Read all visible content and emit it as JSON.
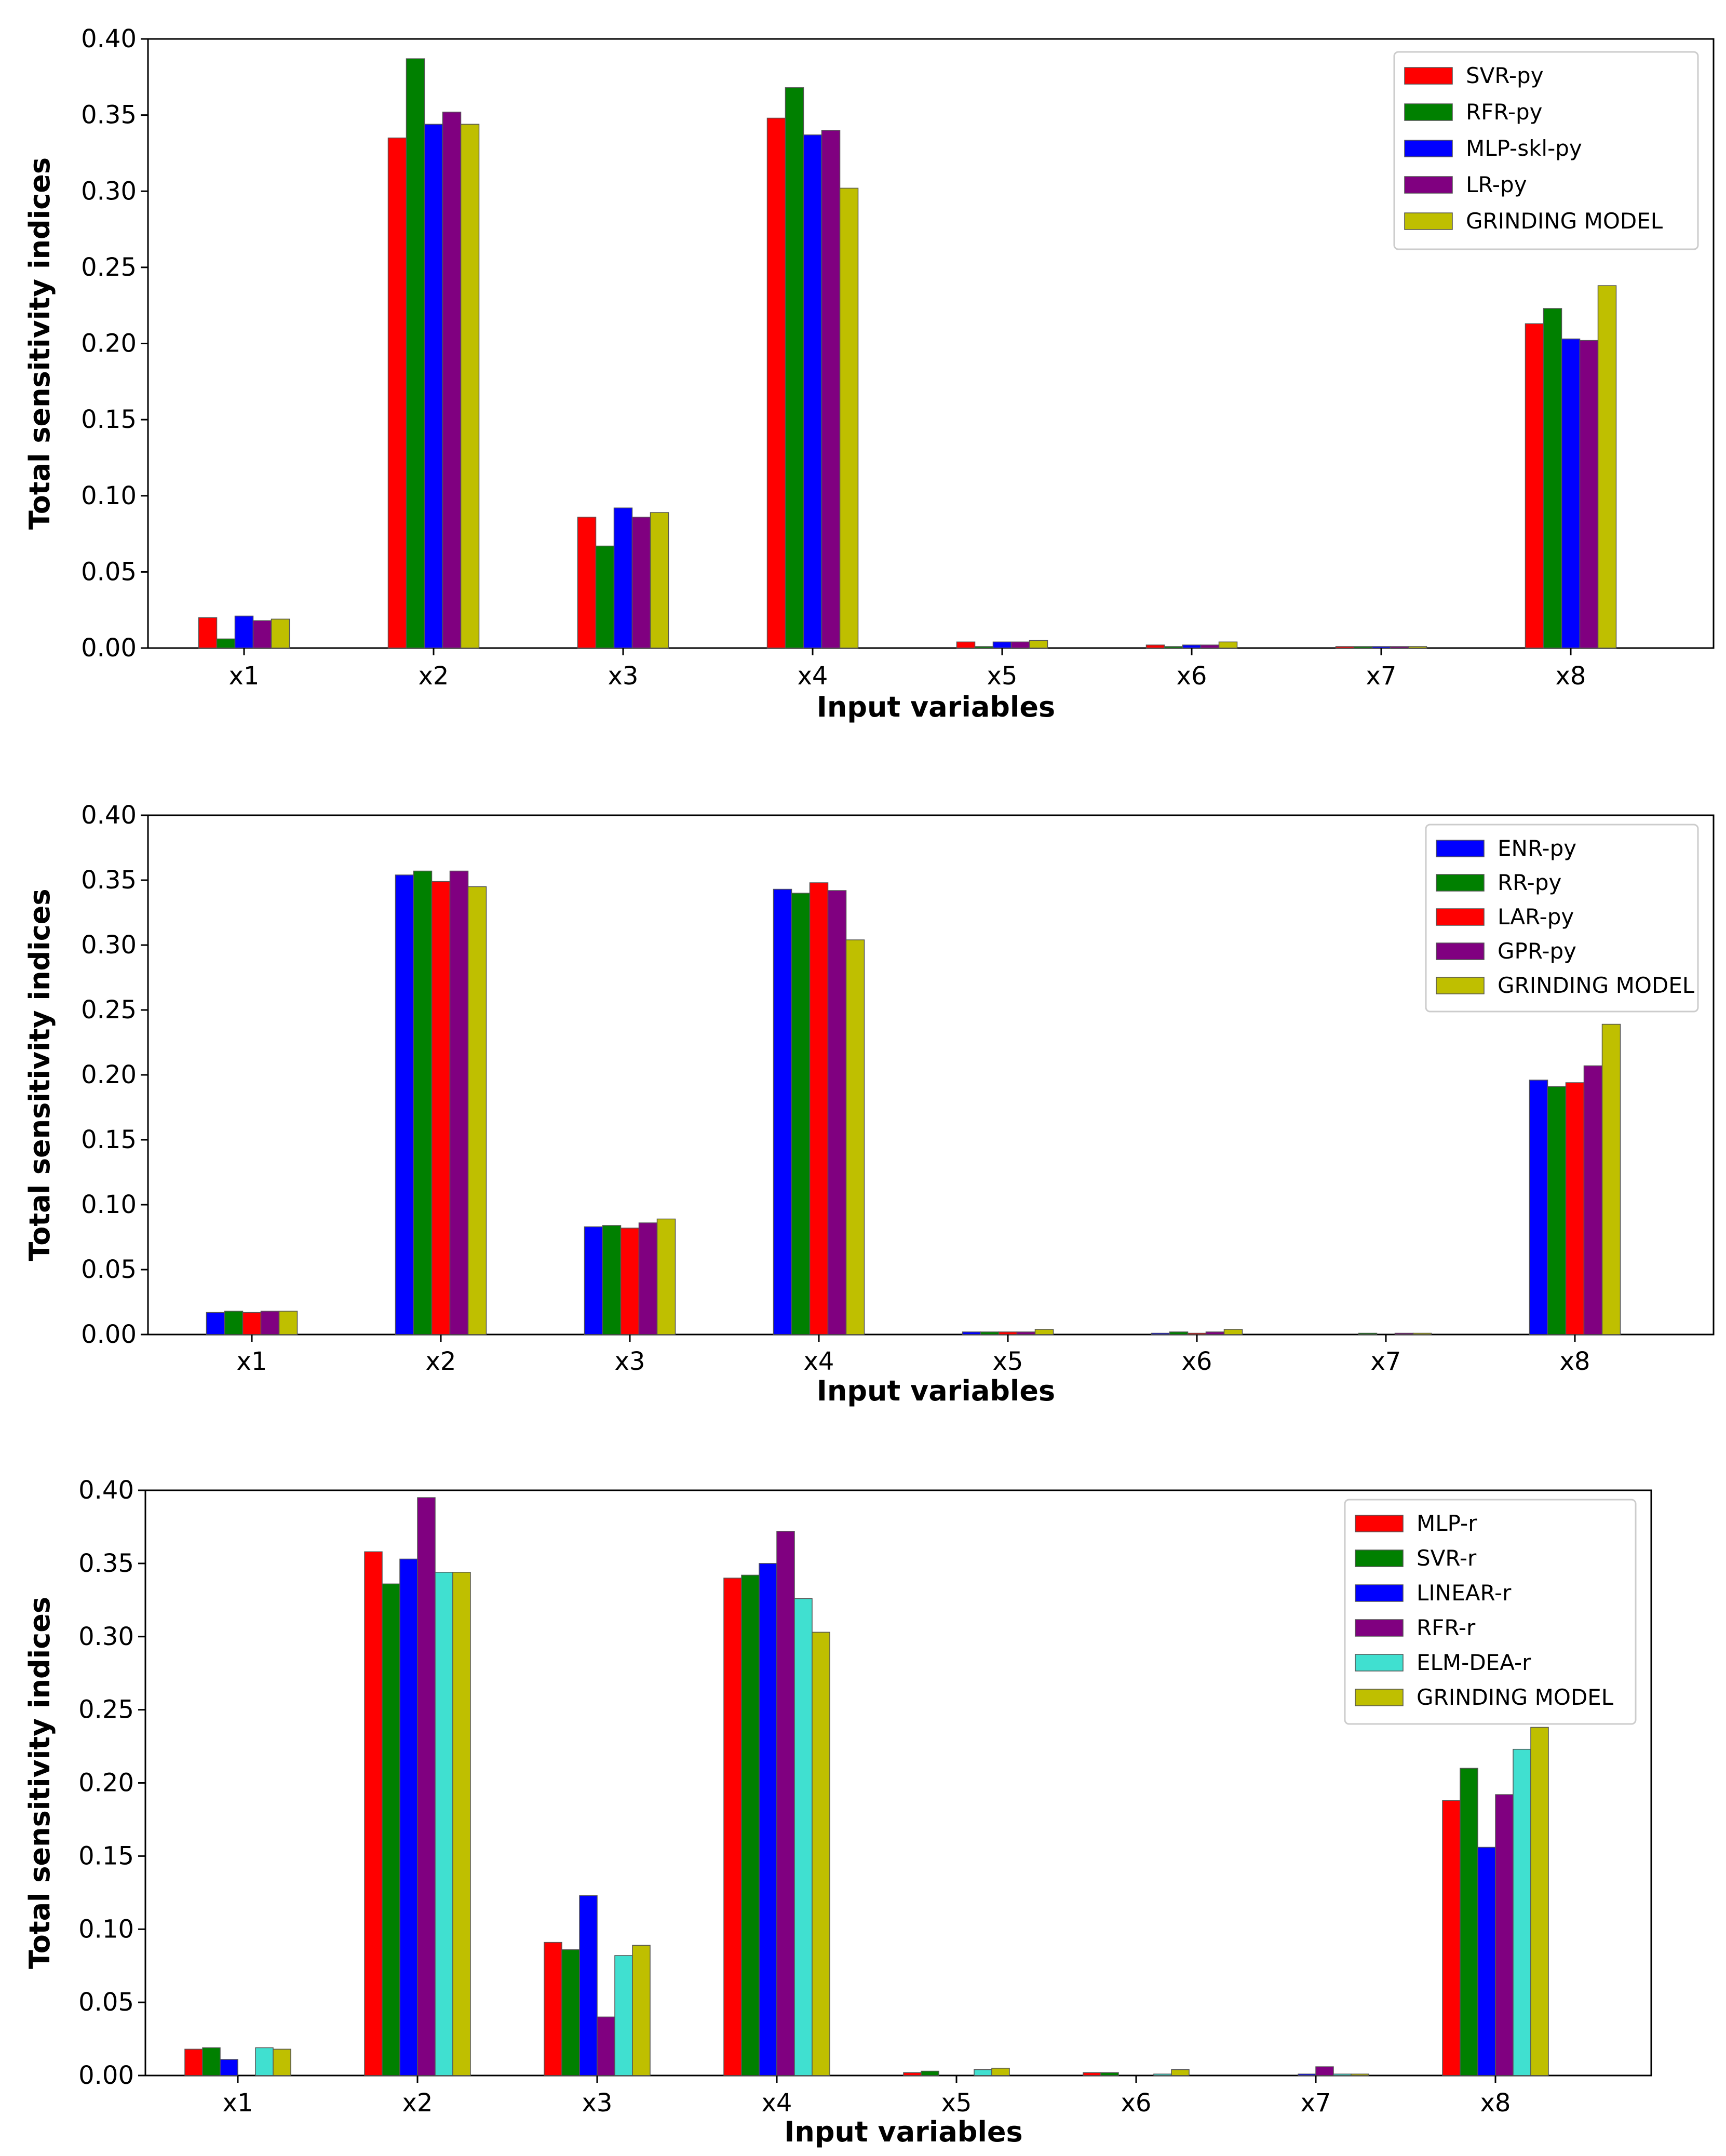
{
  "chart_data": [
    {
      "type": "bar",
      "categories": [
        "x1",
        "x2",
        "x3",
        "x4",
        "x5",
        "x6",
        "x7",
        "x8"
      ],
      "xlabel": "Input variables",
      "ylabel": "Total sensitivity indices",
      "ylim": [
        0,
        0.4
      ],
      "yticks": [
        "0.00",
        "0.05",
        "0.10",
        "0.15",
        "0.20",
        "0.25",
        "0.30",
        "0.35",
        "0.40"
      ],
      "legend_position": "top-right",
      "grid": false,
      "series": [
        {
          "name": "SVR-py",
          "color": "#ff0000",
          "values": [
            0.02,
            0.335,
            0.086,
            0.348,
            0.004,
            0.002,
            0.001,
            0.213
          ]
        },
        {
          "name": "RFR-py",
          "color": "#008000",
          "values": [
            0.006,
            0.387,
            0.067,
            0.368,
            0.001,
            0.001,
            0.001,
            0.223
          ]
        },
        {
          "name": "MLP-skl-py",
          "color": "#0000ff",
          "values": [
            0.021,
            0.344,
            0.092,
            0.337,
            0.004,
            0.002,
            0.001,
            0.203
          ]
        },
        {
          "name": "LR-py",
          "color": "#800080",
          "values": [
            0.018,
            0.352,
            0.086,
            0.34,
            0.004,
            0.002,
            0.001,
            0.202
          ]
        },
        {
          "name": "GRINDING MODEL",
          "color": "#bfbf00",
          "values": [
            0.019,
            0.344,
            0.089,
            0.302,
            0.005,
            0.004,
            0.001,
            0.238
          ]
        }
      ]
    },
    {
      "type": "bar",
      "categories": [
        "x1",
        "x2",
        "x3",
        "x4",
        "x5",
        "x6",
        "x7",
        "x8"
      ],
      "xlabel": "Input variables",
      "ylabel": "Total sensitivity indices",
      "ylim": [
        0,
        0.4
      ],
      "yticks": [
        "0.00",
        "0.05",
        "0.10",
        "0.15",
        "0.20",
        "0.25",
        "0.30",
        "0.35",
        "0.40"
      ],
      "legend_position": "top-right",
      "grid": false,
      "series": [
        {
          "name": "ENR-py",
          "color": "#0000ff",
          "values": [
            0.017,
            0.354,
            0.083,
            0.343,
            0.002,
            0.001,
            0.0,
            0.196
          ]
        },
        {
          "name": "RR-py",
          "color": "#008000",
          "values": [
            0.018,
            0.357,
            0.084,
            0.34,
            0.002,
            0.002,
            0.001,
            0.191
          ]
        },
        {
          "name": "LAR-py",
          "color": "#ff0000",
          "values": [
            0.017,
            0.349,
            0.082,
            0.348,
            0.002,
            0.001,
            0.0,
            0.194
          ]
        },
        {
          "name": "GPR-py",
          "color": "#800080",
          "values": [
            0.018,
            0.357,
            0.086,
            0.342,
            0.002,
            0.002,
            0.001,
            0.207
          ]
        },
        {
          "name": "GRINDING MODEL",
          "color": "#bfbf00",
          "values": [
            0.018,
            0.345,
            0.089,
            0.304,
            0.004,
            0.004,
            0.001,
            0.239
          ]
        }
      ]
    },
    {
      "type": "bar",
      "categories": [
        "x1",
        "x2",
        "x3",
        "x4",
        "x5",
        "x6",
        "x7",
        "x8"
      ],
      "xlabel": "Input variables",
      "ylabel": "Total sensitivity indices",
      "ylim": [
        0,
        0.4
      ],
      "yticks": [
        "0.00",
        "0.05",
        "0.10",
        "0.15",
        "0.20",
        "0.25",
        "0.30",
        "0.35",
        "0.40"
      ],
      "legend_position": "top-right",
      "grid": false,
      "series": [
        {
          "name": "MLP-r",
          "color": "#ff0000",
          "values": [
            0.018,
            0.358,
            0.091,
            0.34,
            0.002,
            0.002,
            0.0,
            0.188
          ]
        },
        {
          "name": "SVR-r",
          "color": "#008000",
          "values": [
            0.019,
            0.336,
            0.086,
            0.342,
            0.003,
            0.002,
            0.0,
            0.21
          ]
        },
        {
          "name": "LINEAR-r",
          "color": "#0000ff",
          "values": [
            0.011,
            0.353,
            0.123,
            0.35,
            0.0,
            0.0,
            0.001,
            0.156
          ]
        },
        {
          "name": "RFR-r",
          "color": "#800080",
          "values": [
            0.0,
            0.395,
            0.04,
            0.372,
            0.0,
            0.0,
            0.006,
            0.192
          ]
        },
        {
          "name": "ELM-DEA-r",
          "color": "#40e0d0",
          "values": [
            0.019,
            0.344,
            0.082,
            0.326,
            0.004,
            0.001,
            0.001,
            0.223
          ]
        },
        {
          "name": "GRINDING MODEL",
          "color": "#bfbf00",
          "values": [
            0.018,
            0.344,
            0.089,
            0.303,
            0.005,
            0.004,
            0.001,
            0.238
          ]
        }
      ]
    }
  ]
}
